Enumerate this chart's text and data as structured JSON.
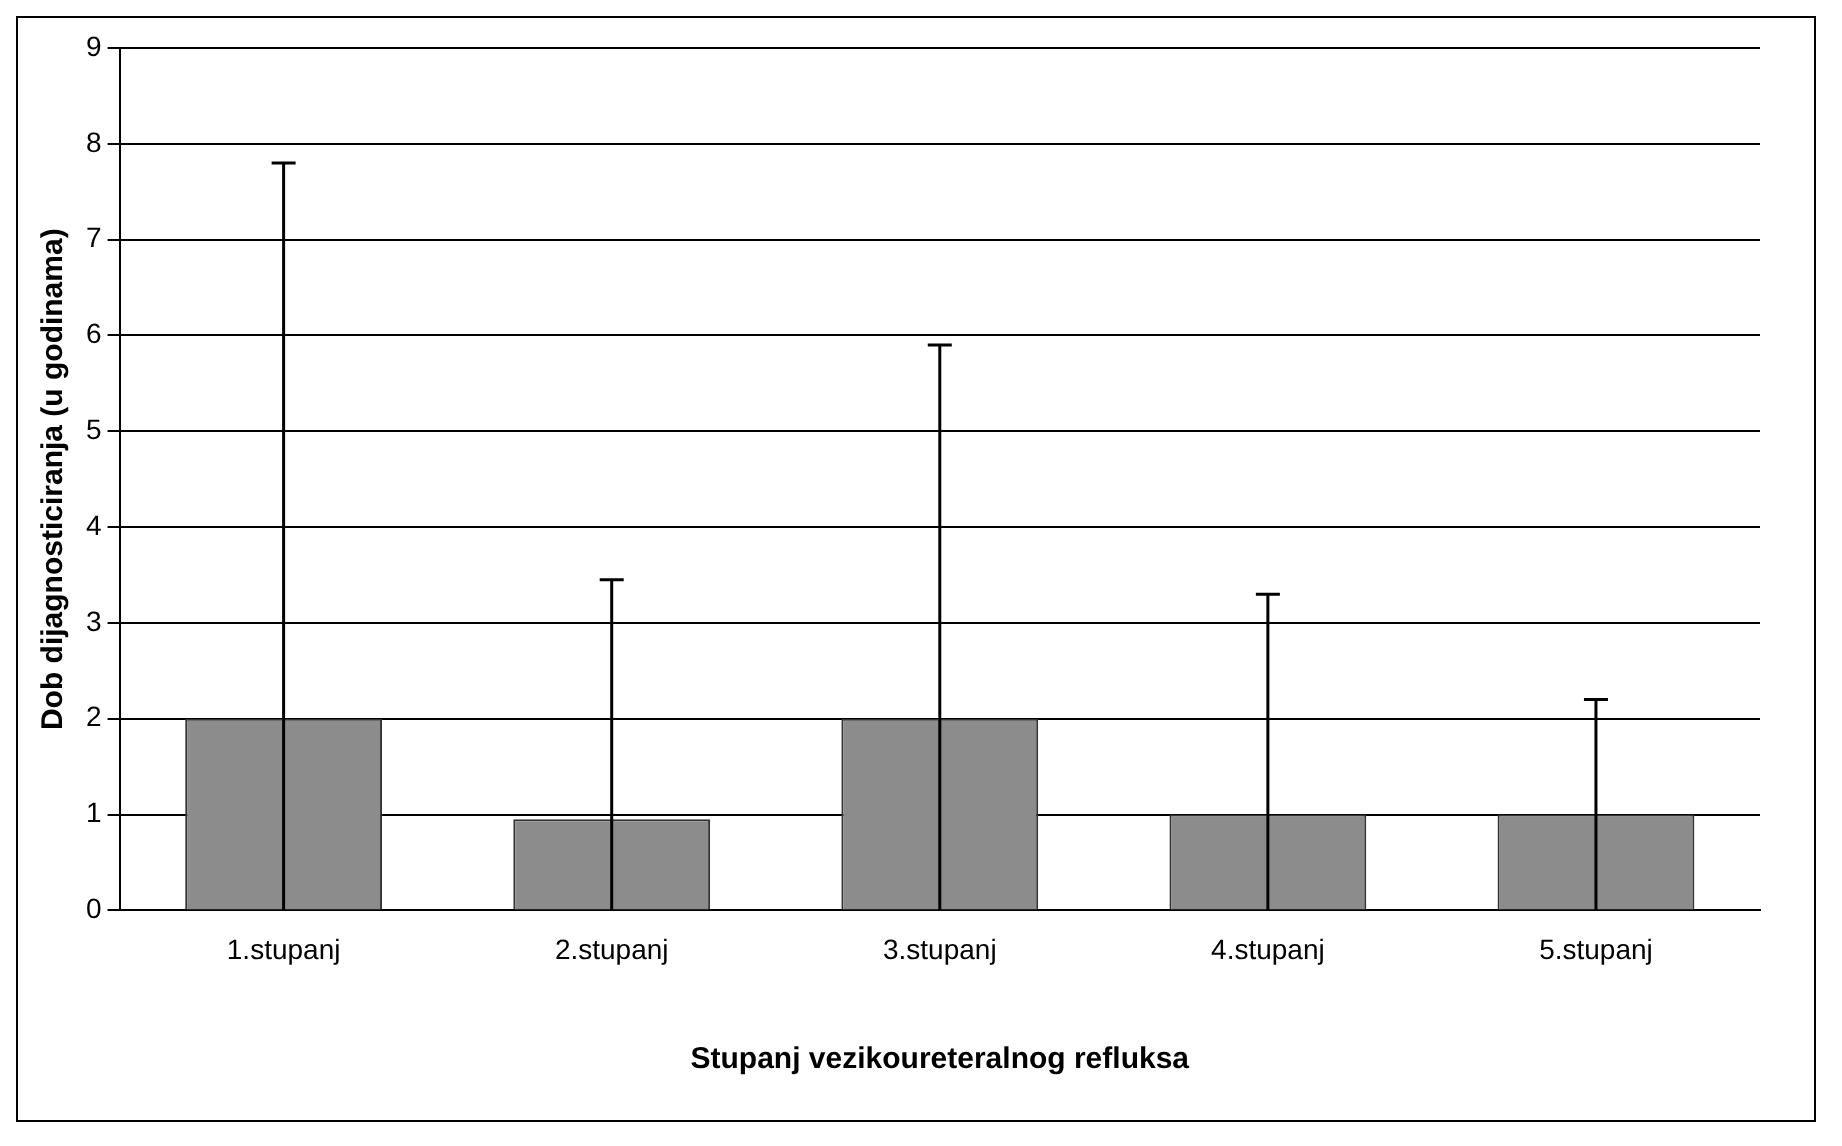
{
  "chart_data": {
    "type": "bar",
    "xlabel": "Stupanj vezikoureteralnog refluksa",
    "ylabel": "Dob dijagnosticiranja (u godinama)",
    "categories": [
      "1.stupanj",
      "2.stupanj",
      "3.stupanj",
      "4.stupanj",
      "5.stupanj"
    ],
    "values": [
      2,
      0.95,
      2,
      1,
      1
    ],
    "errors": [
      [
        0,
        7.8
      ],
      [
        0,
        3.45
      ],
      [
        0,
        5.9
      ],
      [
        0,
        3.3
      ],
      [
        0,
        2.2
      ]
    ],
    "color": "#8c8c8c",
    "ylim": [
      0,
      9
    ],
    "yticks": [
      0,
      1,
      2,
      3,
      4,
      5,
      6,
      7,
      8,
      9
    ],
    "grid": "y",
    "legend": false
  }
}
